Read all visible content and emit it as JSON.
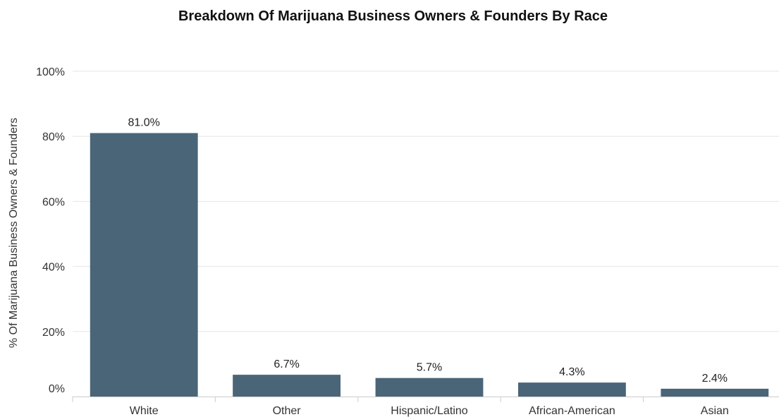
{
  "chart_data": {
    "type": "bar",
    "title": "Breakdown Of Marijuana Business Owners & Founders By Race",
    "xlabel": "",
    "ylabel": "% Of Marijuana Business Owners & Founders",
    "categories": [
      "White",
      "Other",
      "Hispanic/Latino",
      "African-American",
      "Asian"
    ],
    "values": [
      81.0,
      6.7,
      5.7,
      4.3,
      2.4
    ],
    "value_labels": [
      "81.0%",
      "6.7%",
      "5.7%",
      "4.3%",
      "2.4%"
    ],
    "ylim": [
      0,
      100
    ],
    "yticks": [
      0,
      20,
      40,
      60,
      80,
      100
    ],
    "ytick_labels": [
      "0%",
      "20%",
      "40%",
      "60%",
      "80%",
      "100%"
    ],
    "grid": true,
    "legend": "none",
    "bar_color": "#4a6578"
  }
}
